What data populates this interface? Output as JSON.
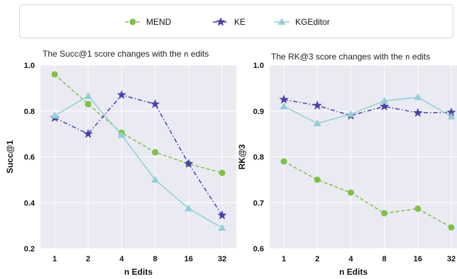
{
  "legend": [
    {
      "name": "MEND",
      "color": "#7dc242",
      "marker": "circle",
      "dash": "dashed"
    },
    {
      "name": "KE",
      "color": "#4a3fb0",
      "marker": "star",
      "dash": "dashdot"
    },
    {
      "name": "KGEditor",
      "color": "#8fd0d6",
      "marker": "triangle",
      "dash": "solid"
    }
  ],
  "chart_data": [
    {
      "type": "line",
      "title_prefix": "The Succ@1 score changes with the ",
      "title_code": "n",
      "title_suffix": " edits",
      "xlabel": "n Edits",
      "ylabel": "Succ@1",
      "categories": [
        "1",
        "2",
        "4",
        "8",
        "16",
        "32"
      ],
      "ylim": [
        0.2,
        1.0
      ],
      "yticks": [
        "0.2",
        "0.4",
        "0.6",
        "0.8",
        "1.0"
      ],
      "grid": true,
      "series": [
        {
          "name": "MEND",
          "values": [
            0.96,
            0.83,
            0.705,
            0.62,
            0.57,
            0.53
          ]
        },
        {
          "name": "KE",
          "values": [
            0.77,
            0.7,
            0.87,
            0.83,
            0.57,
            0.345
          ]
        },
        {
          "name": "KGEditor",
          "values": [
            0.78,
            0.865,
            0.695,
            0.5,
            0.375,
            0.29
          ]
        }
      ]
    },
    {
      "type": "line",
      "title_prefix": "The RK@3 score changes with the ",
      "title_code": "n",
      "title_suffix": " edits",
      "xlabel": "n Edits",
      "ylabel": "RK@3",
      "categories": [
        "1",
        "2",
        "4",
        "8",
        "16",
        "32"
      ],
      "ylim": [
        0.6,
        1.0
      ],
      "yticks": [
        "0.6",
        "0.7",
        "0.8",
        "0.9",
        "1.0"
      ],
      "grid": true,
      "series": [
        {
          "name": "MEND",
          "values": [
            0.79,
            0.75,
            0.722,
            0.677,
            0.687,
            0.646
          ]
        },
        {
          "name": "KE",
          "values": [
            0.925,
            0.912,
            0.89,
            0.91,
            0.896,
            0.897
          ]
        },
        {
          "name": "KGEditor",
          "values": [
            0.91,
            0.873,
            0.893,
            0.922,
            0.93,
            0.888
          ]
        }
      ]
    }
  ]
}
